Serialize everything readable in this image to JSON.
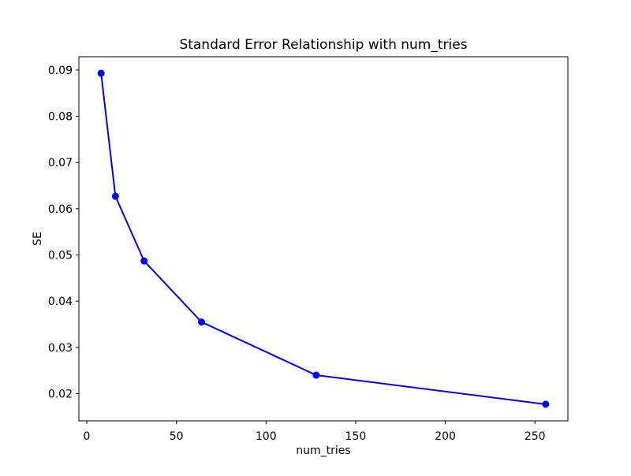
{
  "chart_data": {
    "type": "line",
    "title": "Standard Error Relationship with num_tries",
    "xlabel": "num_tries",
    "ylabel": "SE",
    "x": [
      8,
      16,
      32,
      64,
      128,
      256
    ],
    "y": [
      0.0893,
      0.0627,
      0.0487,
      0.0355,
      0.024,
      0.0177
    ],
    "series": [
      {
        "name": "SE",
        "x": [
          8,
          16,
          32,
          64,
          128,
          256
        ],
        "values": [
          0.0893,
          0.0627,
          0.0487,
          0.0355,
          0.024,
          0.0177
        ]
      }
    ],
    "xticks": [
      0,
      50,
      100,
      150,
      200,
      250
    ],
    "yticks": [
      0.02,
      0.03,
      0.04,
      0.05,
      0.06,
      0.07,
      0.08,
      0.09
    ],
    "xtick_labels": [
      "0",
      "50",
      "100",
      "150",
      "200",
      "250"
    ],
    "ytick_labels": [
      "0.02",
      "0.03",
      "0.04",
      "0.05",
      "0.06",
      "0.07",
      "0.08",
      "0.09"
    ],
    "xlim": [
      -4.4,
      268.4
    ],
    "ylim": [
      0.01412,
      0.09288
    ],
    "line_color": "#0000ff",
    "marker": "o",
    "grid": false,
    "legend": null,
    "background_color": "#ffffff",
    "spine_color": "#000000"
  }
}
